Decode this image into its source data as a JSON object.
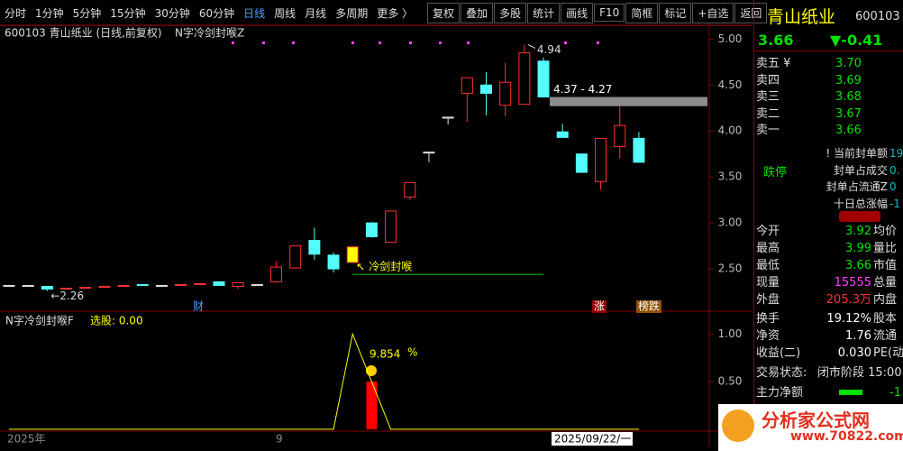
{
  "toolbar": {
    "periods": [
      "分时",
      "1分钟",
      "5分钟",
      "15分钟",
      "30分钟",
      "60分钟",
      "日线",
      "周线",
      "月线",
      "多周期",
      "更多 〉"
    ],
    "active_period": 6,
    "tools": [
      "复权",
      "叠加",
      "多股",
      "统计",
      "画线",
      "F10",
      "简框",
      "标记",
      "+自选",
      "返回"
    ]
  },
  "chart": {
    "type": "candlestick",
    "header": "600103 青山纸业 (日线,前复权)",
    "indicator": "N字冷剑封喉Z",
    "ylim": [
      2.04,
      5.15
    ],
    "yticks": [
      {
        "value": 5,
        "label": "5.00"
      },
      {
        "value": 4.5,
        "label": "4.50"
      },
      {
        "value": 4,
        "label": "4.00"
      },
      {
        "value": 3.5,
        "label": "3.50"
      },
      {
        "value": 3,
        "label": "3.00"
      },
      {
        "value": 2.5,
        "label": "2.50"
      }
    ],
    "up_color": "#ff3232",
    "down_color": "#54fcfc",
    "flat_color": "#e0e0e0",
    "candles": [
      {
        "o": 2.32,
        "h": 2.32,
        "l": 2.32,
        "c": 2.32
      },
      {
        "o": 2.32,
        "h": 2.32,
        "l": 2.32,
        "c": 2.32
      },
      {
        "o": 2.31,
        "h": 2.31,
        "l": 2.26,
        "c": 2.28
      },
      {
        "o": 2.28,
        "h": 2.29,
        "l": 2.28,
        "c": 2.29
      },
      {
        "o": 2.29,
        "h": 2.3,
        "l": 2.29,
        "c": 2.3
      },
      {
        "o": 2.3,
        "h": 2.31,
        "l": 2.3,
        "c": 2.31
      },
      {
        "o": 2.31,
        "h": 2.32,
        "l": 2.31,
        "c": 2.32
      },
      {
        "o": 2.33,
        "h": 2.33,
        "l": 2.32,
        "c": 2.32
      },
      {
        "o": 2.32,
        "h": 2.32,
        "l": 2.32,
        "c": 2.32
      },
      {
        "o": 2.32,
        "h": 2.33,
        "l": 2.32,
        "c": 2.33
      },
      {
        "o": 2.33,
        "h": 2.34,
        "l": 2.33,
        "c": 2.34
      },
      {
        "o": 2.36,
        "h": 2.36,
        "l": 2.32,
        "c": 2.32
      },
      {
        "o": 2.31,
        "h": 2.35,
        "l": 2.28,
        "c": 2.35
      },
      {
        "o": 2.33,
        "h": 2.33,
        "l": 2.33,
        "c": 2.33
      },
      {
        "o": 2.36,
        "h": 2.58,
        "l": 2.35,
        "c": 2.52
      },
      {
        "o": 2.51,
        "h": 2.75,
        "l": 2.51,
        "c": 2.75
      },
      {
        "o": 2.81,
        "h": 2.95,
        "l": 2.6,
        "c": 2.66
      },
      {
        "o": 2.65,
        "h": 2.68,
        "l": 2.46,
        "c": 2.5
      },
      {
        "o": 2.57,
        "h": 2.74,
        "l": 2.57,
        "c": 2.74,
        "fill": "#ffff00"
      },
      {
        "o": 3,
        "h": 3.01,
        "l": 2.84,
        "c": 2.85
      },
      {
        "o": 2.79,
        "h": 3.13,
        "l": 2.79,
        "c": 3.13
      },
      {
        "o": 3.28,
        "h": 3.44,
        "l": 3.25,
        "c": 3.44
      },
      {
        "o": 3.77,
        "h": 3.77,
        "l": 3.66,
        "c": 3.77
      },
      {
        "o": 4.15,
        "h": 4.15,
        "l": 4.07,
        "c": 4.15
      },
      {
        "o": 4.41,
        "h": 4.58,
        "l": 4.1,
        "c": 4.58
      },
      {
        "o": 4.5,
        "h": 4.64,
        "l": 4.17,
        "c": 4.41
      },
      {
        "o": 4.28,
        "h": 4.74,
        "l": 4.16,
        "c": 4.53
      },
      {
        "o": 4.29,
        "h": 4.94,
        "l": 4.29,
        "c": 4.85
      },
      {
        "o": 4.76,
        "h": 4.8,
        "l": 4.37,
        "c": 4.37
      },
      {
        "o": 3.99,
        "h": 4.08,
        "l": 3.93,
        "c": 3.93
      },
      {
        "o": 3.75,
        "h": 3.75,
        "l": 3.55,
        "c": 3.55
      },
      {
        "o": 3.45,
        "h": 3.92,
        "l": 3.36,
        "c": 3.92
      },
      {
        "o": 3.83,
        "h": 4.27,
        "l": 3.7,
        "c": 4.06
      },
      {
        "o": 3.92,
        "h": 3.99,
        "l": 3.66,
        "c": 3.66
      }
    ],
    "zone": {
      "high": 4.37,
      "low": 4.27,
      "label": "4.37 - 4.27",
      "color": "#8c8c8c"
    },
    "signal": {
      "label": "冷剑封喉",
      "level": 2.44,
      "color": "#00c000"
    },
    "badges": [
      "财",
      "涨",
      "榜跌"
    ],
    "x_labels": [
      "2025年",
      "9",
      "2025/09/22/一"
    ]
  },
  "indicator": {
    "name": "N字冷剑封喉F",
    "select": "选股: 0.00",
    "ylim": [
      -0.02,
      1.24
    ],
    "yticks": [
      {
        "value": 1,
        "label": "1.00"
      },
      {
        "value": 0.5,
        "label": "0.50"
      }
    ],
    "line_color": "#ffff00",
    "line": [
      0,
      0,
      0,
      0,
      0,
      0,
      0,
      0,
      0,
      0,
      0,
      0,
      0,
      0,
      0,
      0,
      0,
      0,
      1,
      0.5,
      0,
      0,
      0,
      0,
      0,
      0,
      0,
      0,
      0,
      0,
      0,
      0,
      0,
      0
    ],
    "bar": {
      "index": 19,
      "value": 0.5,
      "color": "#ff0000"
    },
    "value_label": "9.854",
    "unit": "%"
  },
  "quote": {
    "name": "青山纸业",
    "code": "600103",
    "price": "3.66",
    "change": "▼-0.41",
    "asks": [
      {
        "label": "卖五 ¥",
        "price": "3.70"
      },
      {
        "label": "卖四",
        "price": "3.69"
      },
      {
        "label": "卖三",
        "price": "3.68"
      },
      {
        "label": "卖二",
        "price": "3.67"
      },
      {
        "label": "卖一",
        "price": "3.66"
      }
    ],
    "limit": "跌停",
    "seal": [
      {
        "label": "! 当前封单额",
        "value": "19"
      },
      {
        "label": "封单占成交",
        "value": "0."
      },
      {
        "label": "封单占流通Z",
        "value": "0"
      },
      {
        "label": "十日总涨幅",
        "value": "-1"
      }
    ],
    "stats": [
      {
        "label": "今开",
        "value": "3.92",
        "label2": "均价",
        "color": "#00e000"
      },
      {
        "label": "最高",
        "value": "3.99",
        "label2": "量比",
        "color": "#00e000"
      },
      {
        "label": "最低",
        "value": "3.66",
        "label2": "市值",
        "color": "#00e000"
      },
      {
        "label": "现量",
        "value": "15555",
        "label2": "总量",
        "color": "#ff40ff"
      },
      {
        "label": "外盘",
        "value": "205.3万",
        "label2": "内盘",
        "color": "#ff3232"
      }
    ],
    "stats2": [
      {
        "label": "换手",
        "value": "19.12%",
        "label2": "股本"
      },
      {
        "label": "净资",
        "value": "1.76",
        "label2": "流通"
      },
      {
        "label": "收益(二)",
        "value": "0.030",
        "label2": "PE(动)"
      }
    ],
    "status_label": "交易状态:",
    "status": "闭市阶段 15:00",
    "flow_label": "主力净额",
    "flow": "-1"
  },
  "watermark": {
    "title": "分析家公式网",
    "url": "www.70822.com"
  }
}
